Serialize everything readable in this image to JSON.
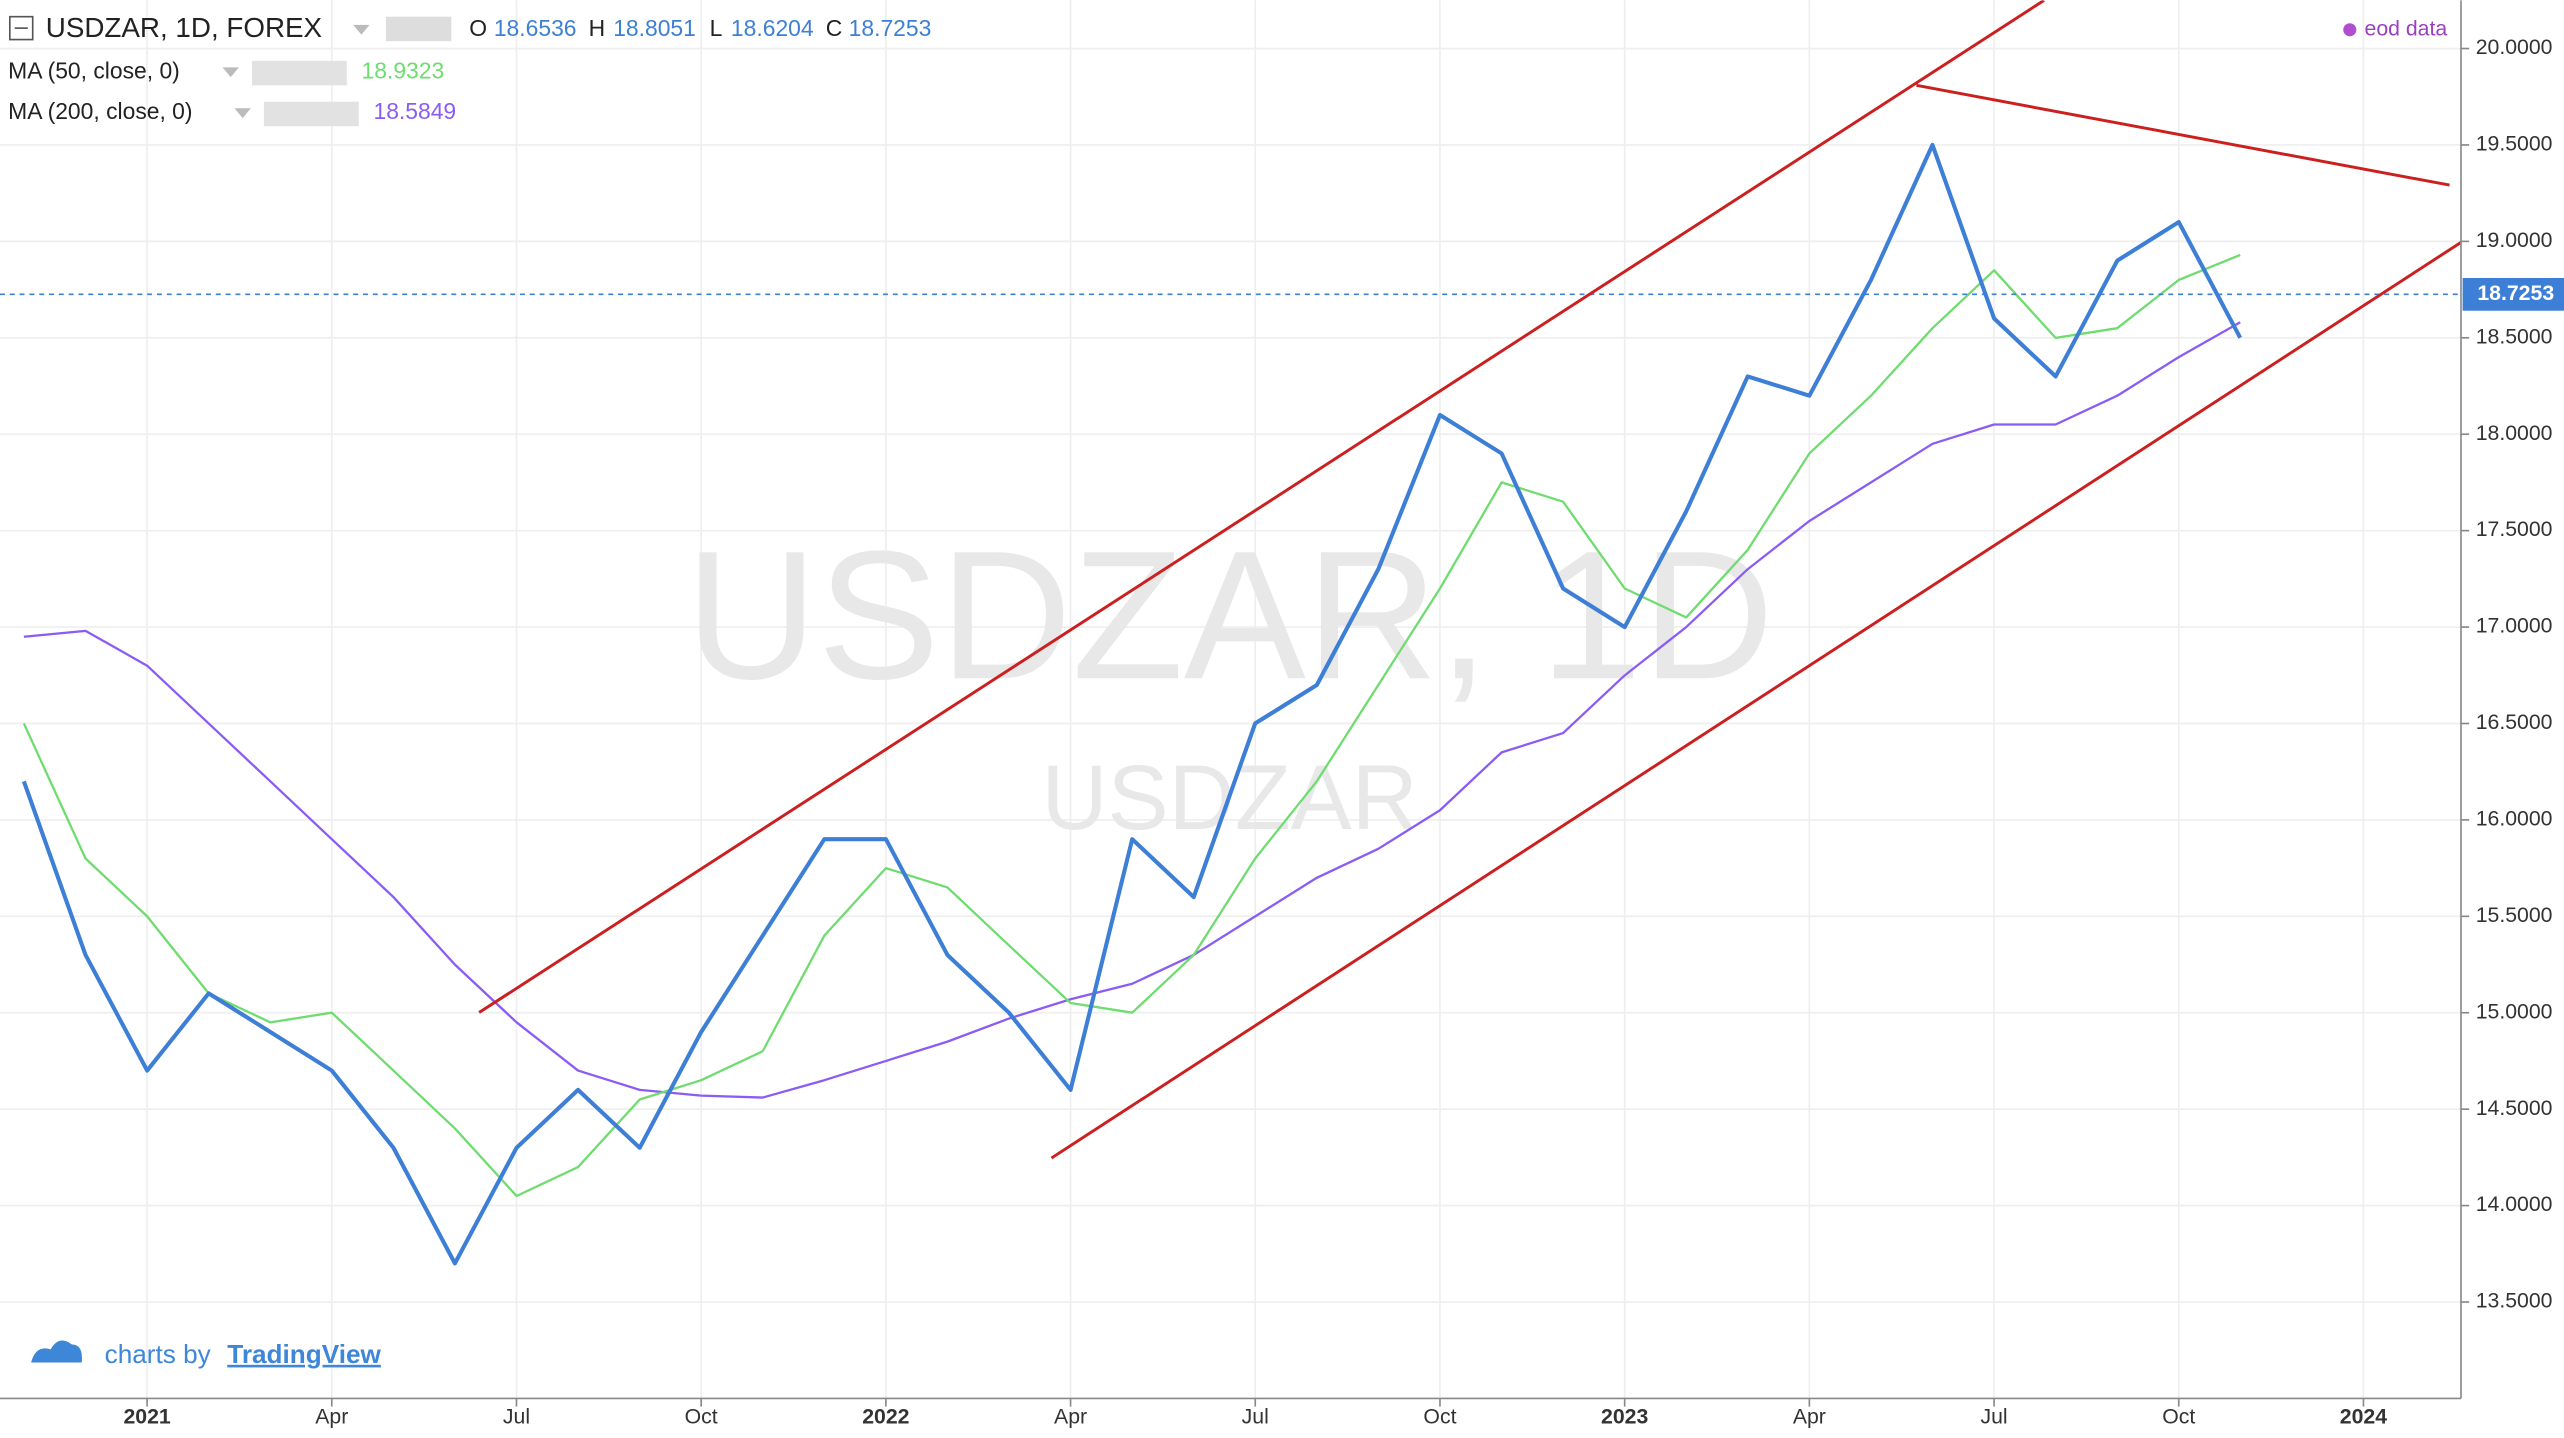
{
  "chart_data": {
    "type": "line",
    "title": "USDZAR, 1D, FOREX",
    "ohlc": [
      {
        "label": "O",
        "value": 18.6536
      },
      {
        "label": "H",
        "value": 18.8051
      },
      {
        "label": "L",
        "value": 18.6204
      },
      {
        "label": "C",
        "value": 18.7253
      }
    ],
    "watermark": "USDZAR, 1D",
    "watermark_sub": "USDZAR",
    "source": "eod data",
    "credit": "charts by",
    "brand": "TradingView",
    "x": [
      "2020-11",
      "2020-12",
      "2021-01",
      "2021-02",
      "2021-03",
      "2021-04",
      "2021-05",
      "2021-06",
      "2021-07",
      "2021-08",
      "2021-09",
      "2021-10",
      "2021-11",
      "2021-12",
      "2022-01",
      "2022-02",
      "2022-03",
      "2022-04",
      "2022-05",
      "2022-06",
      "2022-07",
      "2022-08",
      "2022-09",
      "2022-10",
      "2022-11",
      "2022-12",
      "2023-01",
      "2023-02",
      "2023-03",
      "2023-04",
      "2023-05",
      "2023-06",
      "2023-07",
      "2023-08",
      "2023-09",
      "2023-10",
      "2023-11"
    ],
    "xlim": [
      "2020-10",
      "2024-02"
    ],
    "xticks": [
      {
        "value": "2021-01",
        "label": "2021"
      },
      {
        "value": "2021-04",
        "label": "Apr"
      },
      {
        "value": "2021-07",
        "label": "Jul"
      },
      {
        "value": "2021-10",
        "label": "Oct"
      },
      {
        "value": "2022-01",
        "label": "2022"
      },
      {
        "value": "2022-04",
        "label": "Apr"
      },
      {
        "value": "2022-07",
        "label": "Jul"
      },
      {
        "value": "2022-10",
        "label": "Oct"
      },
      {
        "value": "2023-01",
        "label": "2023"
      },
      {
        "value": "2023-04",
        "label": "Apr"
      },
      {
        "value": "2023-07",
        "label": "Jul"
      },
      {
        "value": "2023-10",
        "label": "Oct"
      },
      {
        "value": "2024-01",
        "label": "2024"
      }
    ],
    "ylim": [
      13.0,
      20.25
    ],
    "yticks": [
      {
        "value": 13.5,
        "label": "13.5000"
      },
      {
        "value": 14,
        "label": "14.0000"
      },
      {
        "value": 14.5,
        "label": "14.5000"
      },
      {
        "value": 15,
        "label": "15.0000"
      },
      {
        "value": 15.5,
        "label": "15.5000"
      },
      {
        "value": 16,
        "label": "16.0000"
      },
      {
        "value": 16.5,
        "label": "16.5000"
      },
      {
        "value": 17,
        "label": "17.0000"
      },
      {
        "value": 17.5,
        "label": "17.5000"
      },
      {
        "value": 18,
        "label": "18.0000"
      },
      {
        "value": 18.5,
        "label": "18.5000"
      },
      {
        "value": 19,
        "label": "19.0000"
      },
      {
        "value": 19.5,
        "label": "19.5000"
      },
      {
        "value": 20,
        "label": "20.0000"
      }
    ],
    "grid": true,
    "series": [
      {
        "color": "#3d7fd6",
        "values": [
          16.2,
          15.3,
          14.7,
          15.1,
          14.9,
          14.7,
          14.3,
          13.7,
          14.3,
          14.6,
          14.3,
          14.9,
          15.4,
          15.9,
          15.9,
          15.3,
          15.0,
          14.6,
          15.9,
          15.6,
          16.5,
          16.7,
          17.3,
          18.1,
          17.9,
          17.2,
          17.0,
          17.6,
          18.3,
          18.2,
          18.8,
          19.5,
          18.6,
          18.3,
          18.9,
          19.1,
          18.5
        ]
      },
      {
        "name": "MA (50, close, 0)",
        "color": "#6fdc6f",
        "last": 18.9323,
        "values": [
          16.5,
          15.8,
          15.5,
          15.1,
          14.95,
          15.0,
          14.7,
          14.4,
          14.05,
          14.2,
          14.55,
          14.65,
          14.8,
          15.4,
          15.75,
          15.65,
          15.35,
          15.05,
          15.0,
          15.3,
          15.8,
          16.2,
          16.7,
          17.2,
          17.75,
          17.65,
          17.2,
          17.05,
          17.4,
          17.9,
          18.2,
          18.55,
          18.85,
          18.5,
          18.55,
          18.8,
          18.93
        ]
      },
      {
        "name": "MA (200, close, 0)",
        "color": "#8a5cf5",
        "last": 18.5849,
        "values": [
          16.95,
          16.98,
          16.8,
          16.5,
          16.2,
          15.9,
          15.6,
          15.25,
          14.95,
          14.7,
          14.6,
          14.57,
          14.56,
          14.65,
          14.75,
          14.85,
          14.97,
          15.07,
          15.15,
          15.3,
          15.5,
          15.7,
          15.85,
          16.05,
          16.35,
          16.45,
          16.75,
          17.0,
          17.3,
          17.55,
          17.75,
          17.95,
          18.05,
          18.05,
          18.2,
          18.4,
          18.58
        ]
      }
    ]
  }
}
